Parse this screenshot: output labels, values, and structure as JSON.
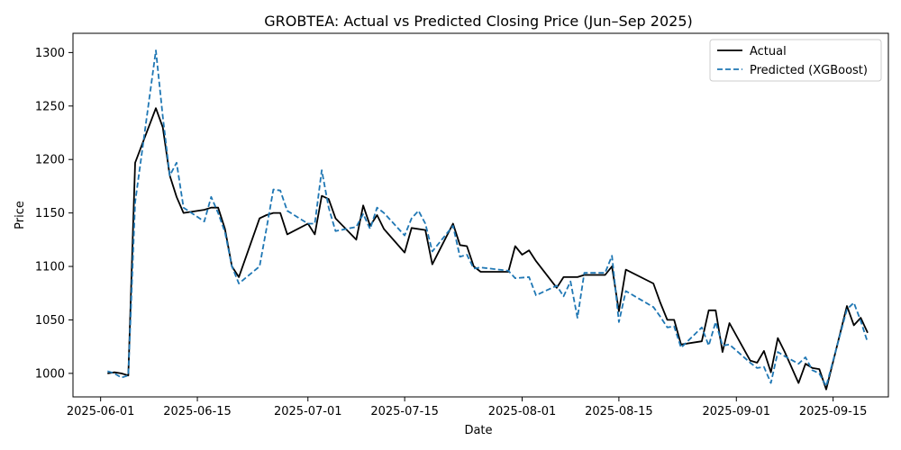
{
  "chart_data": {
    "type": "line",
    "title": "GROBTEA: Actual vs Predicted Closing Price (Jun–Sep 2025)",
    "xlabel": "Date",
    "ylabel": "Price",
    "xlim": [
      "2025-05-28",
      "2025-09-23"
    ],
    "ylim": [
      978,
      1318
    ],
    "x_ticks": [
      "2025-06-01",
      "2025-06-15",
      "2025-07-01",
      "2025-07-15",
      "2025-08-01",
      "2025-08-15",
      "2025-09-01",
      "2025-09-15"
    ],
    "y_ticks": [
      1000,
      1050,
      1100,
      1150,
      1200,
      1250,
      1300
    ],
    "legend": {
      "position": "top-right",
      "entries": [
        "Actual",
        "Predicted (XGBoost)"
      ]
    },
    "series": [
      {
        "name": "Actual",
        "color": "#000000",
        "style": "solid",
        "points": [
          [
            "2025-06-02",
            1000
          ],
          [
            "2025-06-03",
            1001
          ],
          [
            "2025-06-04",
            1000
          ],
          [
            "2025-06-05",
            998
          ],
          [
            "2025-06-06",
            1197
          ],
          [
            "2025-06-09",
            1248
          ],
          [
            "2025-06-10",
            1230
          ],
          [
            "2025-06-11",
            1185
          ],
          [
            "2025-06-12",
            1165
          ],
          [
            "2025-06-13",
            1150
          ],
          [
            "2025-06-16",
            1153
          ],
          [
            "2025-06-17",
            1155
          ],
          [
            "2025-06-18",
            1155
          ],
          [
            "2025-06-19",
            1135
          ],
          [
            "2025-06-20",
            1100
          ],
          [
            "2025-06-21",
            1090
          ],
          [
            "2025-06-24",
            1145
          ],
          [
            "2025-06-25",
            1148
          ],
          [
            "2025-06-26",
            1150
          ],
          [
            "2025-06-27",
            1150
          ],
          [
            "2025-06-28",
            1130
          ],
          [
            "2025-07-01",
            1140
          ],
          [
            "2025-07-02",
            1130
          ],
          [
            "2025-07-03",
            1166
          ],
          [
            "2025-07-04",
            1163
          ],
          [
            "2025-07-05",
            1145
          ],
          [
            "2025-07-08",
            1125
          ],
          [
            "2025-07-09",
            1157
          ],
          [
            "2025-07-10",
            1138
          ],
          [
            "2025-07-11",
            1148
          ],
          [
            "2025-07-12",
            1135
          ],
          [
            "2025-07-15",
            1113
          ],
          [
            "2025-07-16",
            1136
          ],
          [
            "2025-07-18",
            1134
          ],
          [
            "2025-07-19",
            1102
          ],
          [
            "2025-07-22",
            1140
          ],
          [
            "2025-07-23",
            1120
          ],
          [
            "2025-07-24",
            1119
          ],
          [
            "2025-07-25",
            1100
          ],
          [
            "2025-07-26",
            1095
          ],
          [
            "2025-07-30",
            1095
          ],
          [
            "2025-07-31",
            1119
          ],
          [
            "2025-08-01",
            1111
          ],
          [
            "2025-08-02",
            1115
          ],
          [
            "2025-08-03",
            1105
          ],
          [
            "2025-08-06",
            1080
          ],
          [
            "2025-08-07",
            1090
          ],
          [
            "2025-08-08",
            1090
          ],
          [
            "2025-08-09",
            1090
          ],
          [
            "2025-08-10",
            1092
          ],
          [
            "2025-08-13",
            1092
          ],
          [
            "2025-08-14",
            1100
          ],
          [
            "2025-08-15",
            1058
          ],
          [
            "2025-08-16",
            1097
          ],
          [
            "2025-08-20",
            1084
          ],
          [
            "2025-08-21",
            1066
          ],
          [
            "2025-08-22",
            1050
          ],
          [
            "2025-08-23",
            1050
          ],
          [
            "2025-08-24",
            1027
          ],
          [
            "2025-08-27",
            1030
          ],
          [
            "2025-08-28",
            1059
          ],
          [
            "2025-08-29",
            1059
          ],
          [
            "2025-08-30",
            1020
          ],
          [
            "2025-08-31",
            1047
          ],
          [
            "2025-09-03",
            1012
          ],
          [
            "2025-09-04",
            1010
          ],
          [
            "2025-09-05",
            1021
          ],
          [
            "2025-09-06",
            1001
          ],
          [
            "2025-09-07",
            1033
          ],
          [
            "2025-09-08",
            1020
          ],
          [
            "2025-09-10",
            991
          ],
          [
            "2025-09-11",
            1009
          ],
          [
            "2025-09-12",
            1005
          ],
          [
            "2025-09-13",
            1004
          ],
          [
            "2025-09-14",
            985
          ],
          [
            "2025-09-17",
            1063
          ],
          [
            "2025-09-18",
            1045
          ],
          [
            "2025-09-19",
            1052
          ],
          [
            "2025-09-20",
            1038
          ]
        ]
      },
      {
        "name": "Predicted (XGBoost)",
        "color": "#1f77b4",
        "style": "dashed",
        "points": [
          [
            "2025-06-02",
            1002
          ],
          [
            "2025-06-03",
            1000
          ],
          [
            "2025-06-04",
            996
          ],
          [
            "2025-06-05",
            998
          ],
          [
            "2025-06-06",
            1160
          ],
          [
            "2025-06-09",
            1302
          ],
          [
            "2025-06-10",
            1240
          ],
          [
            "2025-06-11",
            1185
          ],
          [
            "2025-06-12",
            1197
          ],
          [
            "2025-06-13",
            1155
          ],
          [
            "2025-06-16",
            1142
          ],
          [
            "2025-06-17",
            1165
          ],
          [
            "2025-06-18",
            1150
          ],
          [
            "2025-06-19",
            1132
          ],
          [
            "2025-06-20",
            1100
          ],
          [
            "2025-06-21",
            1084
          ],
          [
            "2025-06-24",
            1100
          ],
          [
            "2025-06-25",
            1135
          ],
          [
            "2025-06-26",
            1172
          ],
          [
            "2025-06-27",
            1171
          ],
          [
            "2025-06-28",
            1152
          ],
          [
            "2025-07-01",
            1140
          ],
          [
            "2025-07-02",
            1140
          ],
          [
            "2025-07-03",
            1190
          ],
          [
            "2025-07-04",
            1155
          ],
          [
            "2025-07-05",
            1133
          ],
          [
            "2025-07-08",
            1137
          ],
          [
            "2025-07-09",
            1149
          ],
          [
            "2025-07-10",
            1135
          ],
          [
            "2025-07-11",
            1155
          ],
          [
            "2025-07-12",
            1150
          ],
          [
            "2025-07-15",
            1129
          ],
          [
            "2025-07-16",
            1145
          ],
          [
            "2025-07-17",
            1152
          ],
          [
            "2025-07-18",
            1140
          ],
          [
            "2025-07-19",
            1114
          ],
          [
            "2025-07-22",
            1138
          ],
          [
            "2025-07-23",
            1109
          ],
          [
            "2025-07-24",
            1111
          ],
          [
            "2025-07-25",
            1098
          ],
          [
            "2025-07-26",
            1099
          ],
          [
            "2025-07-30",
            1096
          ],
          [
            "2025-07-31",
            1089
          ],
          [
            "2025-08-02",
            1090
          ],
          [
            "2025-08-03",
            1073
          ],
          [
            "2025-08-06",
            1082
          ],
          [
            "2025-08-07",
            1072
          ],
          [
            "2025-08-08",
            1086
          ],
          [
            "2025-08-09",
            1052
          ],
          [
            "2025-08-10",
            1094
          ],
          [
            "2025-08-13",
            1094
          ],
          [
            "2025-08-14",
            1110
          ],
          [
            "2025-08-15",
            1048
          ],
          [
            "2025-08-16",
            1077
          ],
          [
            "2025-08-20",
            1062
          ],
          [
            "2025-08-21",
            1053
          ],
          [
            "2025-08-22",
            1043
          ],
          [
            "2025-08-23",
            1044
          ],
          [
            "2025-08-24",
            1024
          ],
          [
            "2025-08-27",
            1043
          ],
          [
            "2025-08-28",
            1026
          ],
          [
            "2025-08-29",
            1048
          ],
          [
            "2025-08-30",
            1026
          ],
          [
            "2025-08-31",
            1027
          ],
          [
            "2025-09-03",
            1010
          ],
          [
            "2025-09-04",
            1005
          ],
          [
            "2025-09-05",
            1006
          ],
          [
            "2025-09-06",
            991
          ],
          [
            "2025-09-07",
            1020
          ],
          [
            "2025-09-08",
            1016
          ],
          [
            "2025-09-10",
            1009
          ],
          [
            "2025-09-11",
            1015
          ],
          [
            "2025-09-12",
            1003
          ],
          [
            "2025-09-13",
            1000
          ],
          [
            "2025-09-14",
            988
          ],
          [
            "2025-09-17",
            1060
          ],
          [
            "2025-09-18",
            1066
          ],
          [
            "2025-09-19",
            1049
          ],
          [
            "2025-09-20",
            1029
          ]
        ]
      }
    ]
  }
}
